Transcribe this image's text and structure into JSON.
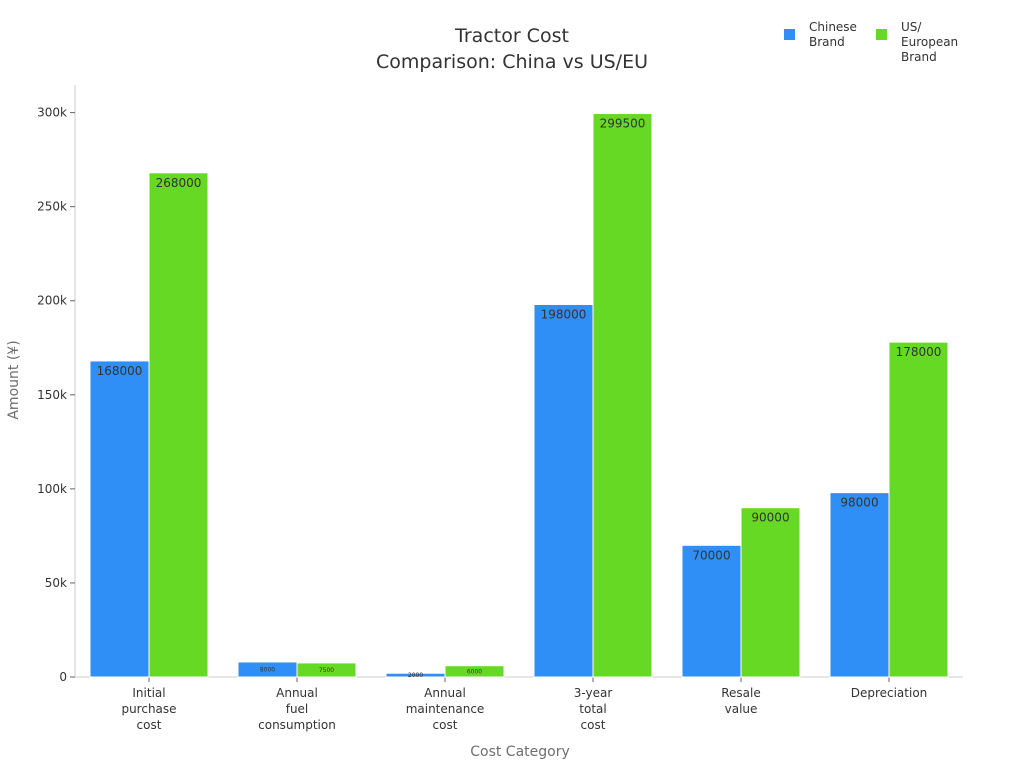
{
  "chart_data": {
    "type": "bar",
    "title_lines": [
      "Tractor Cost",
      "Comparison: China vs US/EU"
    ],
    "xlabel": "Cost Category",
    "ylabel": "Amount (¥)",
    "ylim": [
      0,
      315000
    ],
    "yticks": [
      {
        "value": 0,
        "label": "0"
      },
      {
        "value": 50000,
        "label": "50k"
      },
      {
        "value": 100000,
        "label": "100k"
      },
      {
        "value": 150000,
        "label": "150k"
      },
      {
        "value": 200000,
        "label": "200k"
      },
      {
        "value": 250000,
        "label": "250k"
      },
      {
        "value": 300000,
        "label": "300k"
      }
    ],
    "categories": [
      [
        "Initial",
        "purchase",
        "cost"
      ],
      [
        "Annual",
        "fuel",
        "consumption"
      ],
      [
        "Annual",
        "maintenance",
        "cost"
      ],
      [
        "3-year",
        "total",
        "cost"
      ],
      [
        "Resale",
        "value"
      ],
      [
        "Depreciation"
      ]
    ],
    "series": [
      {
        "name_lines": [
          "Chinese",
          "Brand"
        ],
        "color": "#2f8ff6",
        "values": [
          168000,
          8000,
          2000,
          198000,
          70000,
          98000
        ],
        "labels": [
          "168000",
          "8000",
          "2000",
          "198000",
          "70000",
          "98000"
        ]
      },
      {
        "name_lines": [
          "US/",
          "European",
          "Brand"
        ],
        "color": "#66d924",
        "values": [
          268000,
          7500,
          6000,
          299500,
          90000,
          178000
        ],
        "labels": [
          "268000",
          "7500",
          "6000",
          "299500",
          "90000",
          "178000"
        ]
      }
    ],
    "legend": "top-right",
    "grid": false
  }
}
